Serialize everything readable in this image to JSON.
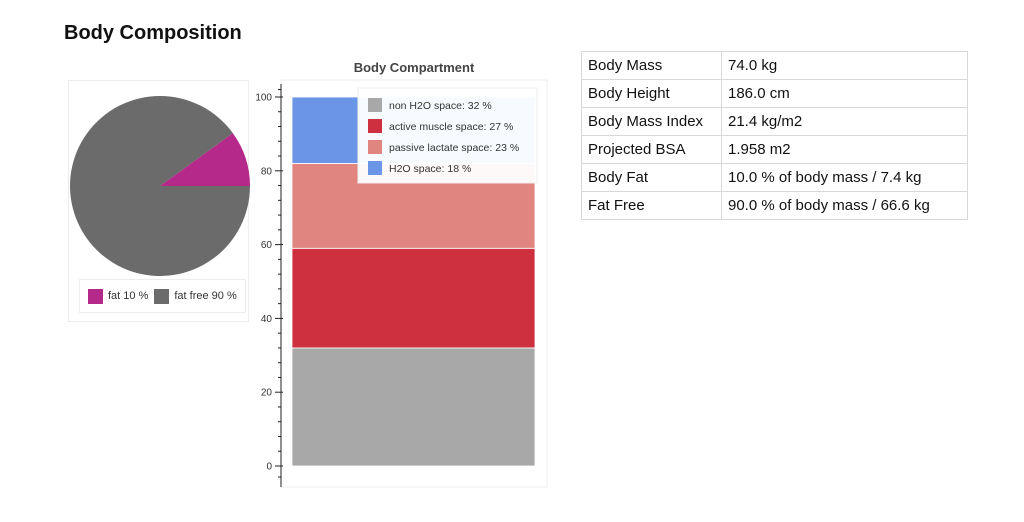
{
  "page_title": "Body Composition",
  "chart_data": [
    {
      "type": "pie",
      "categories": [
        "fat",
        "fat free"
      ],
      "values": [
        10,
        90
      ],
      "colors": [
        "#b5298a",
        "#6b6b6b"
      ],
      "legend": [
        "fat 10 %",
        "fat free 90 %"
      ],
      "legend_placement": "bottom"
    },
    {
      "type": "bar",
      "stacked": true,
      "title": "Body Compartment",
      "xlabel": "",
      "ylabel": "",
      "ylim": [
        0,
        100
      ],
      "yticks": [
        0,
        20,
        40,
        60,
        80,
        100
      ],
      "grid": false,
      "legend_placement": "top-right",
      "series": [
        {
          "name": "non H2O space: 32 %",
          "value": 32,
          "color": "#a8a8a8"
        },
        {
          "name": "active muscle space: 27 %",
          "value": 27,
          "color": "#cf3040"
        },
        {
          "name": "passive lactate space: 23 %",
          "value": 23,
          "color": "#e08580"
        },
        {
          "name": "H2O space: 18 %",
          "value": 18,
          "color": "#6b96e8"
        }
      ]
    }
  ],
  "table": {
    "rows": [
      {
        "label": "Body Mass",
        "value": "74.0 kg"
      },
      {
        "label": "Body Height",
        "value": "186.0 cm"
      },
      {
        "label": "Body Mass Index",
        "value": "21.4 kg/m2"
      },
      {
        "label": "Projected BSA",
        "value": "1.958 m2"
      },
      {
        "label": "Body Fat",
        "value": "10.0 % of body mass / 7.4 kg"
      },
      {
        "label": "Fat Free",
        "value": "90.0 % of body mass / 66.6 kg"
      }
    ]
  }
}
